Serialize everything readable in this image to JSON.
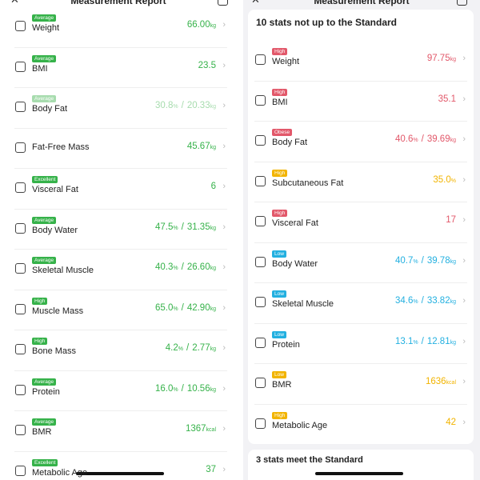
{
  "separator": "/",
  "left": {
    "header": {
      "title": "Measurement Report"
    },
    "rows": [
      {
        "name": "Weight",
        "badge": "Average",
        "value": [
          {
            "text": "66.00",
            "unit": "kg"
          }
        ],
        "color": "#36b24a"
      },
      {
        "name": "BMI",
        "badge": "Average",
        "value": [
          {
            "text": "23.5"
          }
        ],
        "color": "#36b24a"
      },
      {
        "name": "Body Fat",
        "badge": "Average",
        "value": [
          {
            "text": "30.8",
            "unit": "%"
          },
          {
            "text": "20.33",
            "unit": "kg"
          }
        ],
        "color": "#a7dcae"
      },
      {
        "name": "Fat-Free Mass",
        "value": [
          {
            "text": "45.67",
            "unit": "kg"
          }
        ],
        "color": "#36b24a"
      },
      {
        "name": "Visceral Fat",
        "badge": "Excellent",
        "value": [
          {
            "text": "6"
          }
        ],
        "color": "#36b24a"
      },
      {
        "name": "Body Water",
        "badge": "Average",
        "value": [
          {
            "text": "47.5",
            "unit": "%"
          },
          {
            "text": "31.35",
            "unit": "kg"
          }
        ],
        "color": "#36b24a"
      },
      {
        "name": "Skeletal Muscle",
        "badge": "Average",
        "value": [
          {
            "text": "40.3",
            "unit": "%"
          },
          {
            "text": "26.60",
            "unit": "kg"
          }
        ],
        "color": "#36b24a"
      },
      {
        "name": "Muscle Mass",
        "badge": "High",
        "value": [
          {
            "text": "65.0",
            "unit": "%"
          },
          {
            "text": "42.90",
            "unit": "kg"
          }
        ],
        "color": "#36b24a"
      },
      {
        "name": "Bone Mass",
        "badge": "High",
        "value": [
          {
            "text": "4.2",
            "unit": "%"
          },
          {
            "text": "2.77",
            "unit": "kg"
          }
        ],
        "color": "#36b24a"
      },
      {
        "name": "Protein",
        "badge": "Average",
        "value": [
          {
            "text": "16.0",
            "unit": "%"
          },
          {
            "text": "10.56",
            "unit": "kg"
          }
        ],
        "color": "#36b24a"
      },
      {
        "name": "BMR",
        "badge": "Average",
        "value": [
          {
            "text": "1367",
            "unit": "kcal"
          }
        ],
        "color": "#36b24a"
      },
      {
        "name": "Metabolic Age",
        "badge": "Excellent",
        "value": [
          {
            "text": "37"
          }
        ],
        "color": "#36b24a"
      }
    ]
  },
  "right": {
    "header": {
      "title": "Measurement Report"
    },
    "card_title": "10 stats not up to the Standard",
    "rows": [
      {
        "name": "Weight",
        "badge": "High",
        "value": [
          {
            "text": "97.75",
            "unit": "kg"
          }
        ],
        "color": "#e2586a"
      },
      {
        "name": "BMI",
        "badge": "High",
        "value": [
          {
            "text": "35.1"
          }
        ],
        "color": "#e2586a"
      },
      {
        "name": "Body Fat",
        "badge": "Obese",
        "value": [
          {
            "text": "40.6",
            "unit": "%"
          },
          {
            "text": "39.69",
            "unit": "kg"
          }
        ],
        "color": "#e2586a"
      },
      {
        "name": "Subcutaneous Fat",
        "badge": "High",
        "value": [
          {
            "text": "35.0",
            "unit": "%"
          }
        ],
        "color": "#f2b400"
      },
      {
        "name": "Visceral Fat",
        "badge": "High",
        "value": [
          {
            "text": "17"
          }
        ],
        "color": "#e2586a"
      },
      {
        "name": "Body Water",
        "badge": "Low",
        "value": [
          {
            "text": "40.7",
            "unit": "%"
          },
          {
            "text": "39.78",
            "unit": "kg"
          }
        ],
        "color": "#23b0e0"
      },
      {
        "name": "Skeletal Muscle",
        "badge": "Low",
        "value": [
          {
            "text": "34.6",
            "unit": "%"
          },
          {
            "text": "33.82",
            "unit": "kg"
          }
        ],
        "color": "#23b0e0"
      },
      {
        "name": "Protein",
        "badge": "Low",
        "value": [
          {
            "text": "13.1",
            "unit": "%"
          },
          {
            "text": "12.81",
            "unit": "kg"
          }
        ],
        "color": "#23b0e0"
      },
      {
        "name": "BMR",
        "badge": "Low",
        "value": [
          {
            "text": "1636",
            "unit": "kcal"
          }
        ],
        "color": "#f2b400"
      },
      {
        "name": "Metabolic Age",
        "badge": "High",
        "value": [
          {
            "text": "42"
          }
        ],
        "color": "#f2b400"
      }
    ],
    "card2_title": "3 stats meet the Standard"
  }
}
